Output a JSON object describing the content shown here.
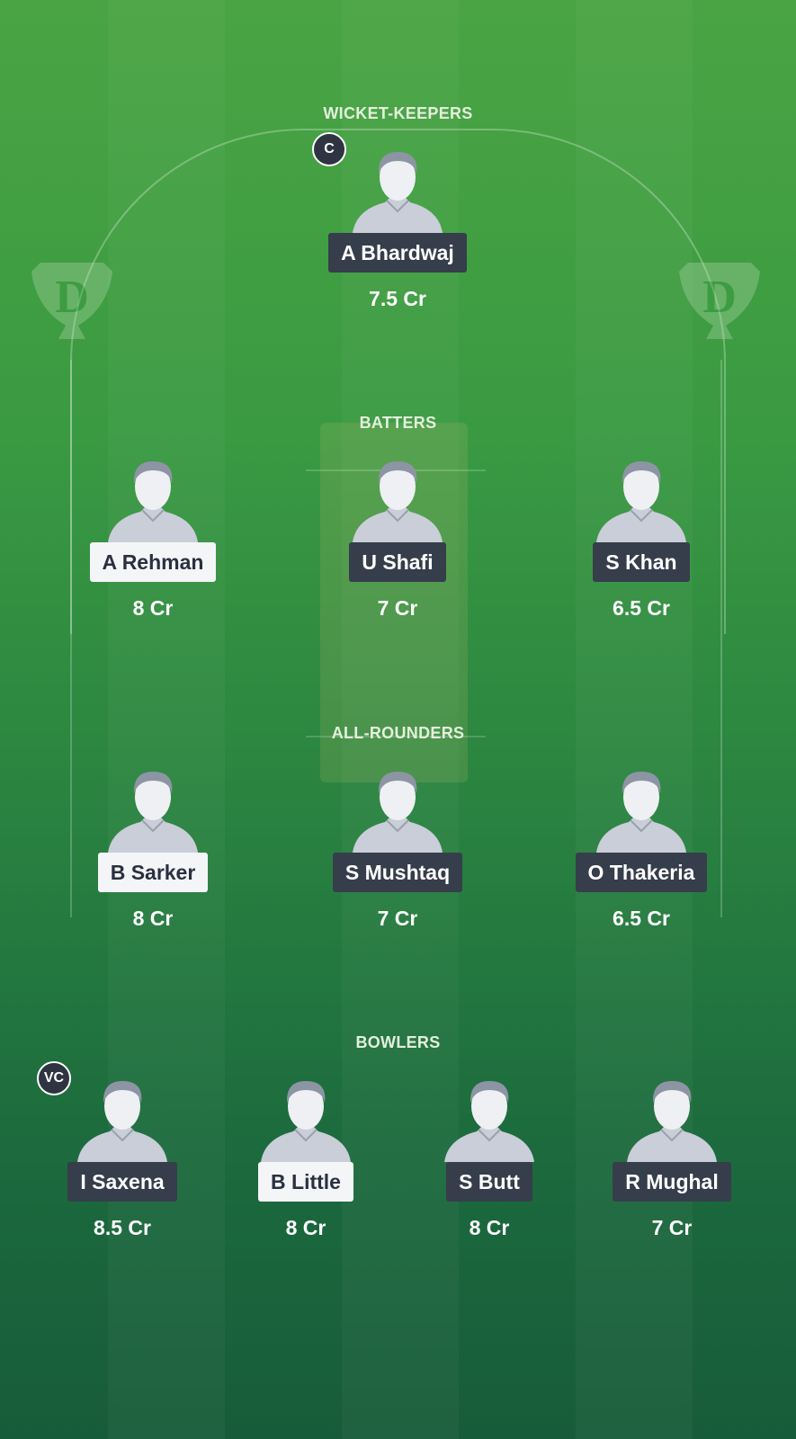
{
  "colors": {
    "label_dark": "#363d4b",
    "label_light": "#f4f5f7",
    "field_top": "#4aa443",
    "field_bottom": "#175c3a"
  },
  "logo_letter": "D",
  "sections": [
    {
      "title": "WICKET-KEEPERS",
      "players": [
        {
          "name": "A Bhardwaj",
          "price": "7.5 Cr",
          "style": "dark",
          "badge": "C"
        }
      ]
    },
    {
      "title": "BATTERS",
      "players": [
        {
          "name": "A Rehman",
          "price": "8 Cr",
          "style": "light"
        },
        {
          "name": "U Shafi",
          "price": "7 Cr",
          "style": "dark"
        },
        {
          "name": "S Khan",
          "price": "6.5 Cr",
          "style": "dark"
        }
      ]
    },
    {
      "title": "ALL-ROUNDERS",
      "players": [
        {
          "name": "B Sarker",
          "price": "8 Cr",
          "style": "light"
        },
        {
          "name": "S Mushtaq",
          "price": "7 Cr",
          "style": "dark"
        },
        {
          "name": "O Thakeria",
          "price": "6.5 Cr",
          "style": "dark"
        }
      ]
    },
    {
      "title": "BOWLERS",
      "players": [
        {
          "name": "I Saxena",
          "price": "8.5 Cr",
          "style": "dark",
          "badge": "VC"
        },
        {
          "name": "B Little",
          "price": "8 Cr",
          "style": "light"
        },
        {
          "name": "S Butt",
          "price": "8 Cr",
          "style": "dark"
        },
        {
          "name": "R Mughal",
          "price": "7 Cr",
          "style": "dark"
        }
      ]
    }
  ]
}
